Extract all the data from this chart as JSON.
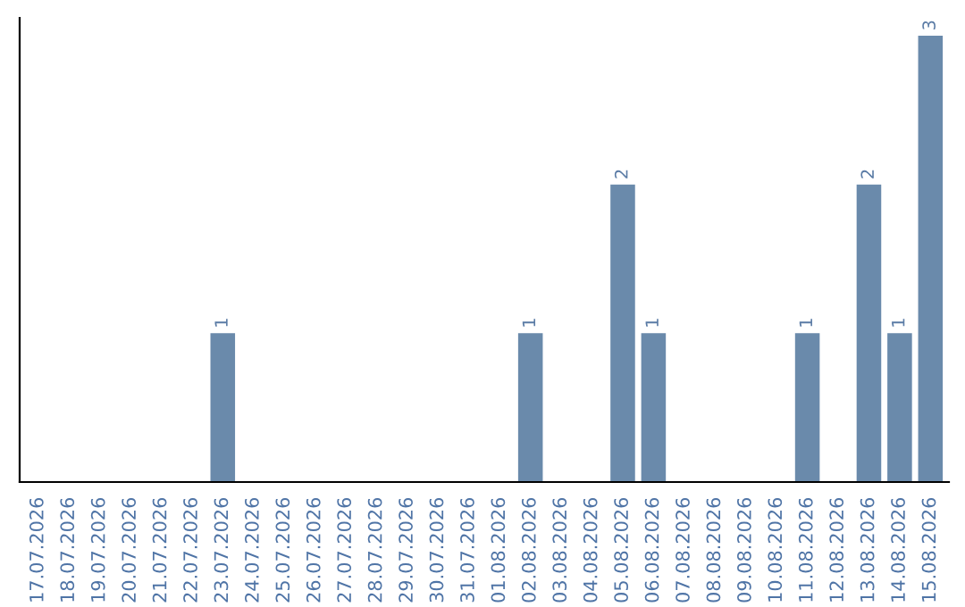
{
  "chart_data": {
    "type": "bar",
    "categories": [
      "17.07.2026",
      "18.07.2026",
      "19.07.2026",
      "20.07.2026",
      "21.07.2026",
      "22.07.2026",
      "23.07.2026",
      "24.07.2026",
      "25.07.2026",
      "26.07.2026",
      "27.07.2026",
      "28.07.2026",
      "29.07.2026",
      "30.07.2026",
      "31.07.2026",
      "01.08.2026",
      "02.08.2026",
      "03.08.2026",
      "04.08.2026",
      "05.08.2026",
      "06.08.2026",
      "07.08.2026",
      "08.08.2026",
      "09.08.2026",
      "10.08.2026",
      "11.08.2026",
      "12.08.2026",
      "13.08.2026",
      "14.08.2026",
      "15.08.2026"
    ],
    "values": [
      0,
      0,
      0,
      0,
      0,
      0,
      1,
      0,
      0,
      0,
      0,
      0,
      0,
      0,
      0,
      0,
      1,
      0,
      0,
      2,
      1,
      0,
      0,
      0,
      0,
      1,
      0,
      2,
      1,
      3
    ],
    "value_labels": [
      null,
      null,
      null,
      null,
      null,
      null,
      "1",
      null,
      null,
      null,
      null,
      null,
      null,
      null,
      null,
      null,
      "1",
      null,
      null,
      "2",
      "1",
      null,
      null,
      null,
      null,
      "1",
      null,
      "2",
      "1",
      "3"
    ],
    "color": "#6a8aab",
    "grid": false,
    "legend": false
  }
}
